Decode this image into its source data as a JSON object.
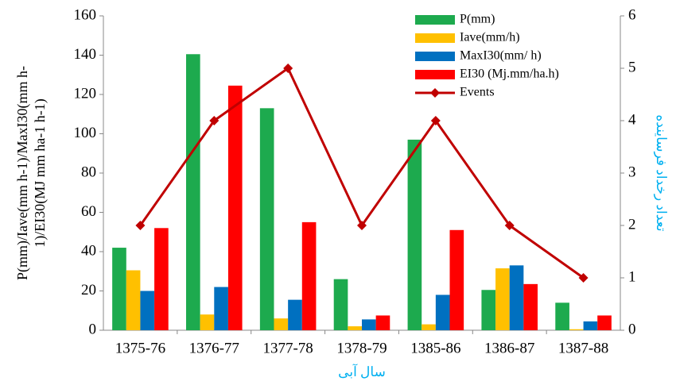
{
  "chart_data": {
    "type": "bar",
    "categories": [
      "1375-76",
      "1376-77",
      "1377-78",
      "1378-79",
      "1385-86",
      "1386-87",
      "1387-88"
    ],
    "series": [
      {
        "name": "P(mm)",
        "color": "#1daa4e",
        "values": [
          42,
          140.5,
          113,
          26,
          97,
          20.5,
          14
        ]
      },
      {
        "name": "Iave(mm/h)",
        "color": "#ffc000",
        "values": [
          30.5,
          8,
          6,
          2,
          3,
          31.5,
          0.5
        ]
      },
      {
        "name": "MaxI30(mm/ h)",
        "color": "#0070c0",
        "values": [
          20,
          22,
          15.5,
          5.5,
          18,
          33,
          4.5
        ]
      },
      {
        "name": "EI30 (Mj.mm/ha.h)",
        "color": "#ff0000",
        "values": [
          52,
          124.5,
          55,
          7.5,
          51,
          23.5,
          7.5
        ]
      },
      {
        "name": "Events",
        "color": "#c00000",
        "type": "line",
        "axis": "y2",
        "values": [
          2,
          4,
          5,
          2,
          4,
          2,
          1
        ]
      }
    ],
    "ylabel": [
      "P(mm)/Iave(mm h-1)/MaxI30(mm h-",
      "1)/EI30(MJ mm ha-1 h-1)"
    ],
    "y2label": "تعداد رخداد فرساینده",
    "xlabel": "سال آبی",
    "ylim": [
      0,
      160
    ],
    "yticks": [
      0,
      20,
      40,
      60,
      80,
      100,
      120,
      140,
      160
    ],
    "y2lim": [
      0,
      6
    ],
    "y2ticks": [
      0,
      1,
      2,
      3,
      4,
      5,
      6
    ],
    "legend": "upper right"
  }
}
